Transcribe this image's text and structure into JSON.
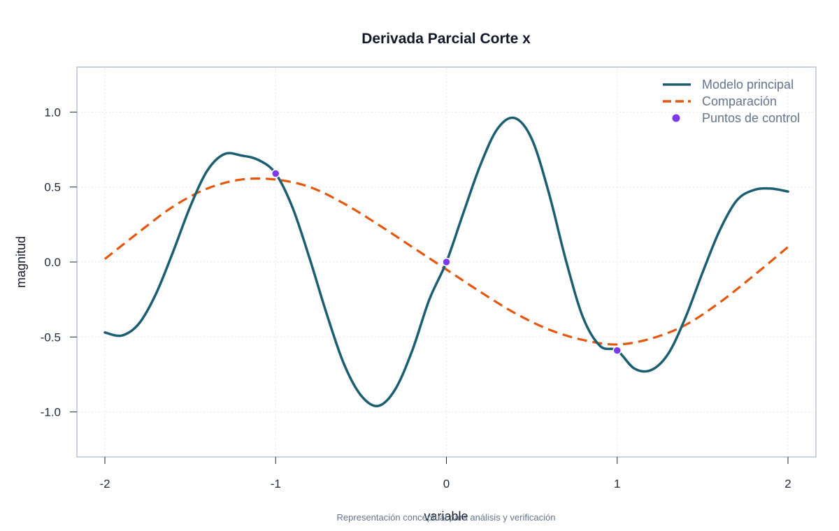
{
  "chart_data": {
    "type": "line",
    "title": "Derivada Parcial Corte x",
    "xlabel": "variable",
    "ylabel": "magnitud",
    "caption": "Representación conceptual para análisis y verificación",
    "xlim": [
      -2,
      2
    ],
    "ylim": [
      -1.3,
      1.3
    ],
    "x_ticks": [
      -2,
      -1,
      0,
      1,
      2
    ],
    "x_tick_labels": [
      "-2",
      "-1",
      "0",
      "1",
      "2"
    ],
    "y_ticks": [
      -1.0,
      -0.5,
      0.0,
      0.5,
      1.0
    ],
    "y_tick_labels": [
      "-1.0",
      "-0.5",
      "0.0",
      "0.5",
      "1.0"
    ],
    "grid": true,
    "legend_position": "top-right",
    "series": [
      {
        "name": "Modelo principal",
        "style": "solid",
        "color": "#1b5e72",
        "x": [
          -2.0,
          -1.9,
          -1.8,
          -1.7,
          -1.6,
          -1.5,
          -1.4,
          -1.3,
          -1.2,
          -1.1,
          -1.0,
          -0.9,
          -0.8,
          -0.7,
          -0.6,
          -0.5,
          -0.4,
          -0.3,
          -0.2,
          -0.1,
          0.0,
          0.1,
          0.2,
          0.3,
          0.4,
          0.5,
          0.6,
          0.7,
          0.8,
          0.9,
          1.0,
          1.1,
          1.2,
          1.3,
          1.4,
          1.5,
          1.6,
          1.7,
          1.8,
          1.9,
          2.0
        ],
        "y": [
          -0.47,
          -0.49,
          -0.41,
          -0.21,
          0.07,
          0.37,
          0.61,
          0.72,
          0.71,
          0.68,
          0.59,
          0.36,
          0.02,
          -0.35,
          -0.68,
          -0.89,
          -0.96,
          -0.85,
          -0.59,
          -0.25,
          0.0,
          0.33,
          0.65,
          0.89,
          0.96,
          0.82,
          0.46,
          0.01,
          -0.37,
          -0.56,
          -0.59,
          -0.71,
          -0.72,
          -0.61,
          -0.37,
          -0.07,
          0.21,
          0.41,
          0.48,
          0.49,
          0.47
        ]
      },
      {
        "name": "Comparación",
        "style": "dashed",
        "color": "#e4570f",
        "x": [
          -2.0,
          -1.8,
          -1.6,
          -1.4,
          -1.2,
          -1.0,
          -0.8,
          -0.6,
          -0.4,
          -0.2,
          0.0,
          0.2,
          0.4,
          0.6,
          0.8,
          1.0,
          1.2,
          1.4,
          1.6,
          1.8,
          2.0
        ],
        "y": [
          0.02,
          0.2,
          0.37,
          0.49,
          0.55,
          0.55,
          0.5,
          0.39,
          0.25,
          0.1,
          -0.05,
          -0.2,
          -0.34,
          -0.45,
          -0.52,
          -0.55,
          -0.51,
          -0.42,
          -0.27,
          -0.09,
          0.1
        ]
      },
      {
        "name": "Puntos de control",
        "style": "points",
        "color": "#7c3aed",
        "x": [
          -1,
          0,
          1
        ],
        "y": [
          0.59,
          0.0,
          -0.59
        ]
      }
    ]
  }
}
